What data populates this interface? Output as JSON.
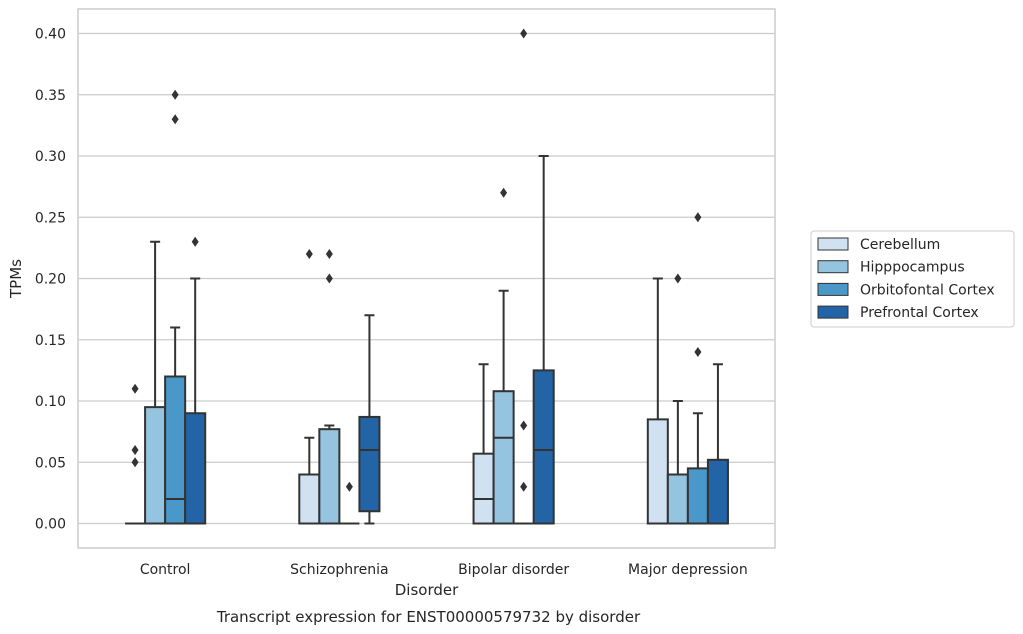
{
  "caption": "Transcript expression for ENST00000579732 by disorder",
  "chart_data": {
    "type": "box",
    "xlabel": "Disorder",
    "ylabel": "TPMs",
    "ylim": [
      -0.02,
      0.42
    ],
    "yticks": [
      0.0,
      0.05,
      0.1,
      0.15,
      0.2,
      0.25,
      0.3,
      0.35,
      0.4
    ],
    "ytick_labels": [
      "0.00",
      "0.05",
      "0.10",
      "0.15",
      "0.20",
      "0.25",
      "0.30",
      "0.35",
      "0.40"
    ],
    "grid": "horizontal",
    "legend_position": "right",
    "categories": [
      "Control",
      "Schizophrenia",
      "Bipolar disorder",
      "Major depression"
    ],
    "series": [
      {
        "name": "Cerebellum",
        "color": "#d0e1f2",
        "boxes": [
          {
            "whislo": 0.0,
            "q1": 0.0,
            "med": 0.0,
            "q3": 0.0,
            "whishi": 0.0,
            "fliers": [
              0.05,
              0.06,
              0.11
            ]
          },
          {
            "whislo": 0.0,
            "q1": 0.0,
            "med": 0.0,
            "q3": 0.04,
            "whishi": 0.07,
            "fliers": [
              0.22
            ]
          },
          {
            "whislo": 0.0,
            "q1": 0.0,
            "med": 0.02,
            "q3": 0.057,
            "whishi": 0.13,
            "fliers": []
          },
          {
            "whislo": 0.0,
            "q1": 0.0,
            "med": 0.0,
            "q3": 0.085,
            "whishi": 0.2,
            "fliers": []
          }
        ]
      },
      {
        "name": "Hipppocampus",
        "color": "#94c4df",
        "boxes": [
          {
            "whislo": 0.0,
            "q1": 0.0,
            "med": 0.0,
            "q3": 0.095,
            "whishi": 0.23,
            "fliers": []
          },
          {
            "whislo": 0.0,
            "q1": 0.0,
            "med": 0.0,
            "q3": 0.077,
            "whishi": 0.08,
            "fliers": [
              0.2,
              0.22
            ]
          },
          {
            "whislo": 0.0,
            "q1": 0.0,
            "med": 0.07,
            "q3": 0.108,
            "whishi": 0.19,
            "fliers": [
              0.27
            ]
          },
          {
            "whislo": 0.0,
            "q1": 0.0,
            "med": 0.0,
            "q3": 0.04,
            "whishi": 0.1,
            "fliers": [
              0.2
            ]
          }
        ]
      },
      {
        "name": "Orbitofontal Cortex",
        "color": "#4a98c9",
        "boxes": [
          {
            "whislo": 0.0,
            "q1": 0.0,
            "med": 0.02,
            "q3": 0.12,
            "whishi": 0.16,
            "fliers": [
              0.33,
              0.35
            ]
          },
          {
            "whislo": 0.0,
            "q1": 0.0,
            "med": 0.0,
            "q3": 0.0,
            "whishi": 0.0,
            "fliers": [
              0.03
            ]
          },
          {
            "whislo": 0.0,
            "q1": 0.0,
            "med": 0.0,
            "q3": 0.0,
            "whishi": 0.0,
            "fliers": [
              0.03,
              0.08,
              0.4
            ]
          },
          {
            "whislo": 0.0,
            "q1": 0.0,
            "med": 0.0,
            "q3": 0.045,
            "whishi": 0.09,
            "fliers": [
              0.14,
              0.25
            ]
          }
        ]
      },
      {
        "name": "Prefrontal Cortex",
        "color": "#2264a6",
        "boxes": [
          {
            "whislo": 0.0,
            "q1": 0.0,
            "med": 0.0,
            "q3": 0.09,
            "whishi": 0.2,
            "fliers": [
              0.23
            ]
          },
          {
            "whislo": 0.0,
            "q1": 0.01,
            "med": 0.06,
            "q3": 0.087,
            "whishi": 0.17,
            "fliers": []
          },
          {
            "whislo": 0.0,
            "q1": 0.0,
            "med": 0.06,
            "q3": 0.125,
            "whishi": 0.3,
            "fliers": []
          },
          {
            "whislo": 0.0,
            "q1": 0.0,
            "med": 0.0,
            "q3": 0.052,
            "whishi": 0.13,
            "fliers": []
          }
        ]
      }
    ]
  }
}
